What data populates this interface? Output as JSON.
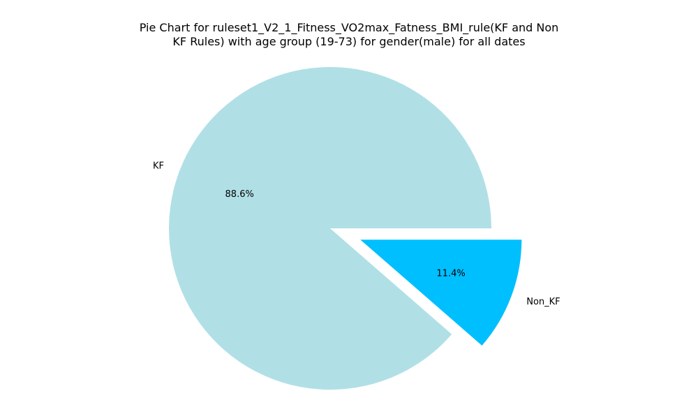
{
  "chart_data": {
    "type": "pie",
    "title": "Pie Chart for ruleset1_V2_1_Fitness_VO2max_Fatness_BMI_rule(KF and Non KF Rules) with age group (19-73) for gender(male) for all dates",
    "title_lines": [
      "Pie Chart for ruleset1_V2_1_Fitness_VO2max_Fatness_BMI_rule(KF and Non",
      "KF Rules) with age group (19-73) for gender(male) for all dates"
    ],
    "slices": [
      {
        "label": "KF",
        "value": 88.6,
        "pct_label": "88.6%",
        "color": "#b0e0e6",
        "exploded": false
      },
      {
        "label": "Non_KF",
        "value": 11.4,
        "pct_label": "11.4%",
        "color": "#00bfff",
        "exploded": true
      }
    ]
  }
}
